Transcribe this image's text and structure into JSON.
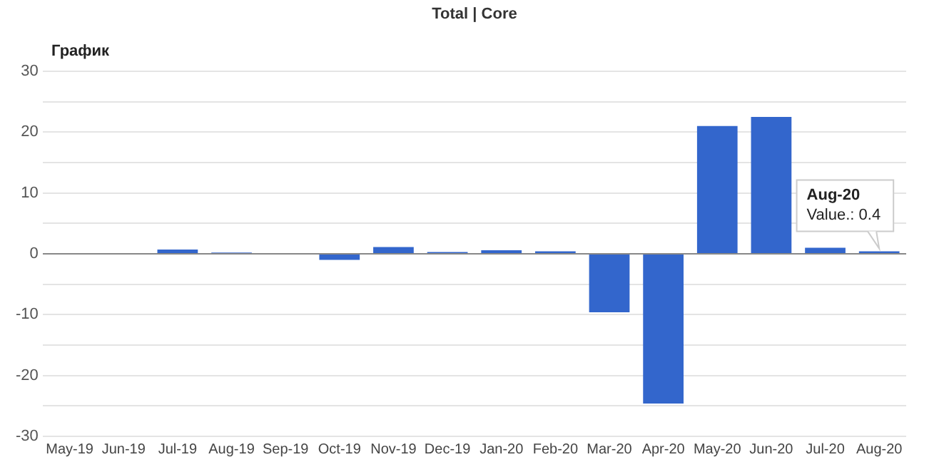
{
  "chart_data": {
    "type": "bar",
    "title": "График",
    "subtitle": "Total | Core",
    "categories": [
      "May-19",
      "Jun-19",
      "Jul-19",
      "Aug-19",
      "Sep-19",
      "Oct-19",
      "Nov-19",
      "Dec-19",
      "Jan-20",
      "Feb-20",
      "Mar-20",
      "Apr-20",
      "May-20",
      "Jun-20",
      "Jul-20",
      "Aug-20"
    ],
    "values": [
      0,
      0,
      0.7,
      0.2,
      0,
      -1,
      1.1,
      0.3,
      0.6,
      0.4,
      -9.6,
      -24.6,
      21,
      22.5,
      1,
      0.4
    ],
    "color": "#3366cc",
    "ylim": [
      -30,
      30
    ],
    "yticks": [
      -30,
      {
        "value": -25,
        "label": null
      },
      -20,
      {
        "value": -15,
        "label": null
      },
      -10,
      {
        "value": -5,
        "label": null
      },
      0,
      {
        "value": 5,
        "label": null
      },
      10,
      {
        "value": 15,
        "label": null
      },
      20,
      {
        "value": 25,
        "label": null
      },
      30
    ],
    "grid": "y",
    "annotations": [
      {
        "text": "Aug-20\nValue.: 0.4",
        "x": "Aug-20",
        "y": 0.4
      }
    ]
  }
}
